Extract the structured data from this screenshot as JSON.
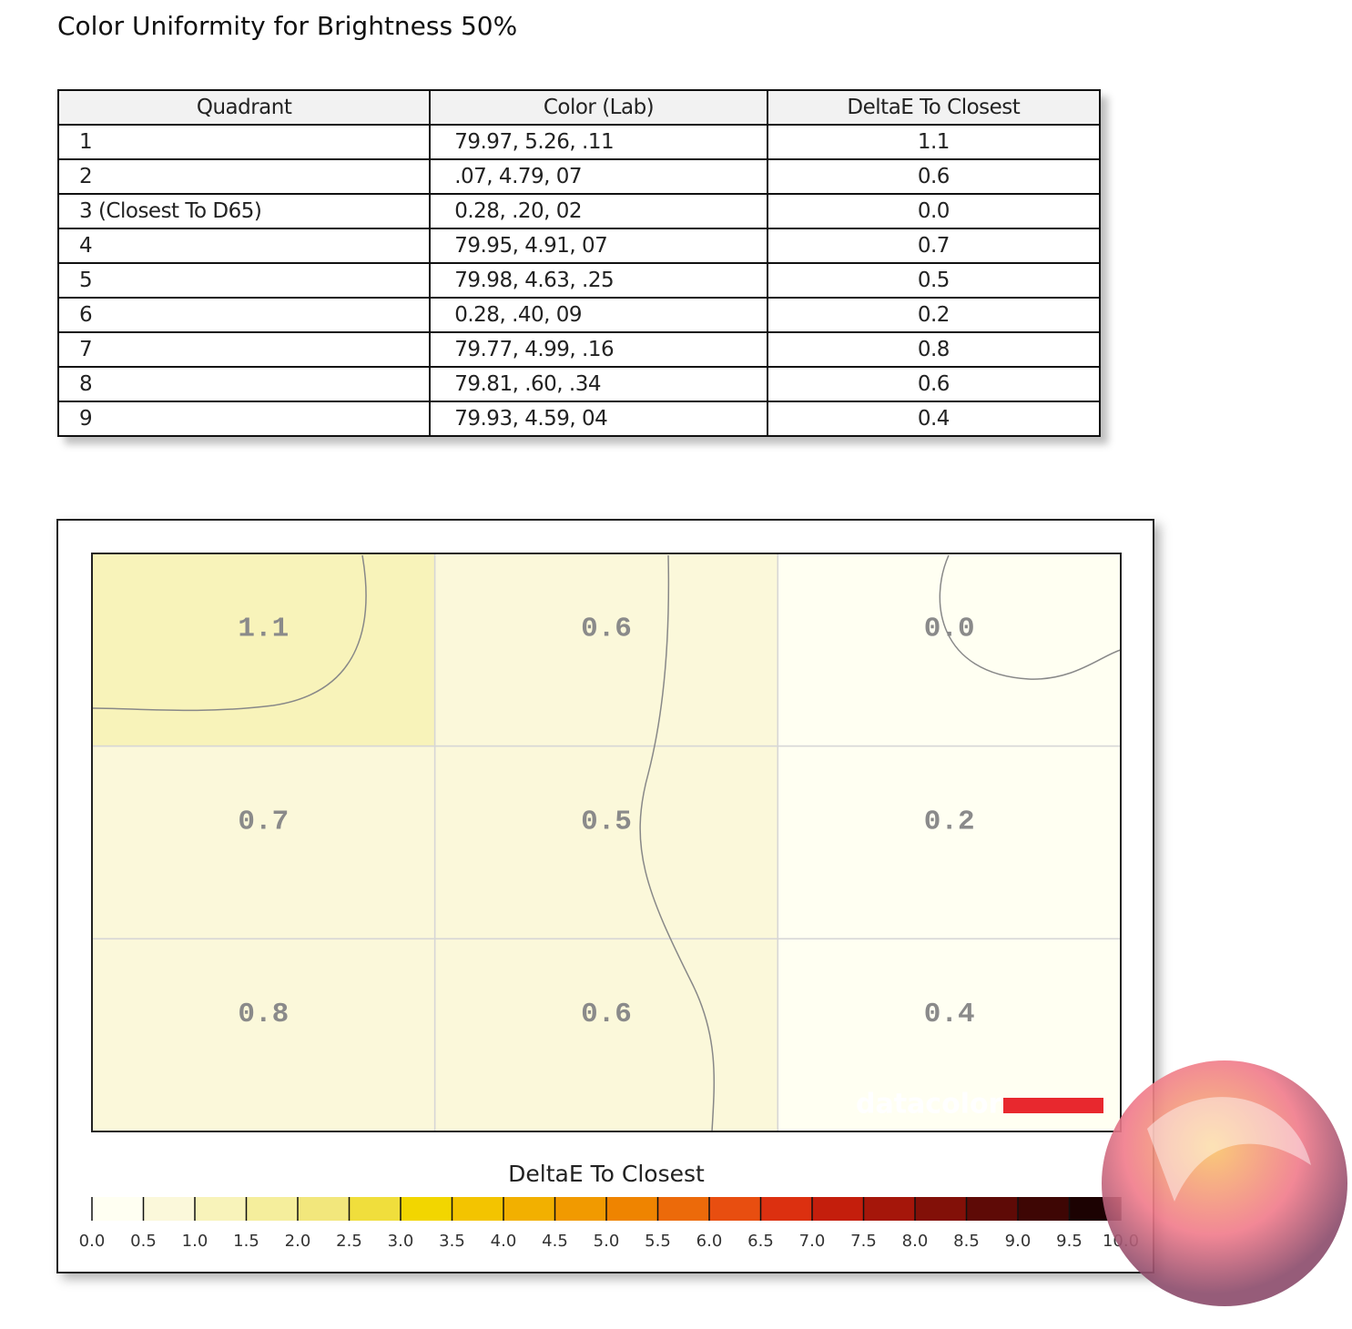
{
  "title": "Color Uniformity for Brightness 50%",
  "table": {
    "headers": [
      "Quadrant",
      "Color (Lab)",
      "DeltaE To Closest"
    ],
    "rows": [
      [
        "1",
        "79.97,  5.26,   .11",
        "1.1"
      ],
      [
        "2",
        ".07,  4.79,    07",
        "0.6"
      ],
      [
        "3 (Closest To D65)",
        "0.28,   .20,    02",
        "0.0"
      ],
      [
        "4",
        "79.95,  4.91,    07",
        "0.7"
      ],
      [
        "5",
        "79.98,  4.63,   .25",
        "0.5"
      ],
      [
        "6",
        "0.28,   .40,    09",
        "0.2"
      ],
      [
        "7",
        "79.77,  4.99,   .16",
        "0.8"
      ],
      [
        "8",
        "79.81,   .60,   .34",
        "0.6"
      ],
      [
        "9",
        "79.93,  4.59,    04",
        "0.4"
      ]
    ]
  },
  "chart_data": {
    "type": "heatmap",
    "title": "DeltaE To Closest",
    "values": [
      [
        1.1,
        0.6,
        0.0
      ],
      [
        0.7,
        0.5,
        0.2
      ],
      [
        0.8,
        0.6,
        0.4
      ]
    ],
    "value_labels": [
      [
        "1.1",
        "0.6",
        "0.0"
      ],
      [
        "0.7",
        "0.5",
        "0.2"
      ],
      [
        "0.8",
        "0.6",
        "0.4"
      ]
    ],
    "colorbar_lim": [
      0,
      10
    ],
    "colorbar_ticks": [
      {
        "value": 0,
        "label": "0.0"
      },
      0.5,
      {
        "value": 1,
        "label": "1.0"
      },
      1.5,
      {
        "value": 2,
        "label": "2.0"
      },
      2.5,
      {
        "value": 3,
        "label": "3.0"
      },
      3.5,
      {
        "value": 4,
        "label": "4.0"
      },
      4.5,
      {
        "value": 5,
        "label": "5.0"
      },
      5.5,
      {
        "value": 6,
        "label": "6.0"
      },
      6.5,
      {
        "value": 7,
        "label": "7.0"
      },
      7.5,
      {
        "value": 8,
        "label": "8.0"
      },
      8.5,
      {
        "value": 9,
        "label": "9.0"
      },
      9.5,
      {
        "value": 10,
        "label": "10.0"
      }
    ],
    "colorbar_colors": [
      "#fffff2",
      "#fbf8da",
      "#f8f3ba",
      "#f5ee9c",
      "#f2e77c",
      "#f0de3c",
      "#f2d600",
      "#f3c400",
      "#f2b000",
      "#f19a00",
      "#ef8400",
      "#ec6a0a",
      "#e84e10",
      "#dc3010",
      "#c41e0c",
      "#a5160a",
      "#821008",
      "#5e0a06",
      "#3e0604",
      "#1c0202"
    ],
    "watermark": "datacolor"
  }
}
